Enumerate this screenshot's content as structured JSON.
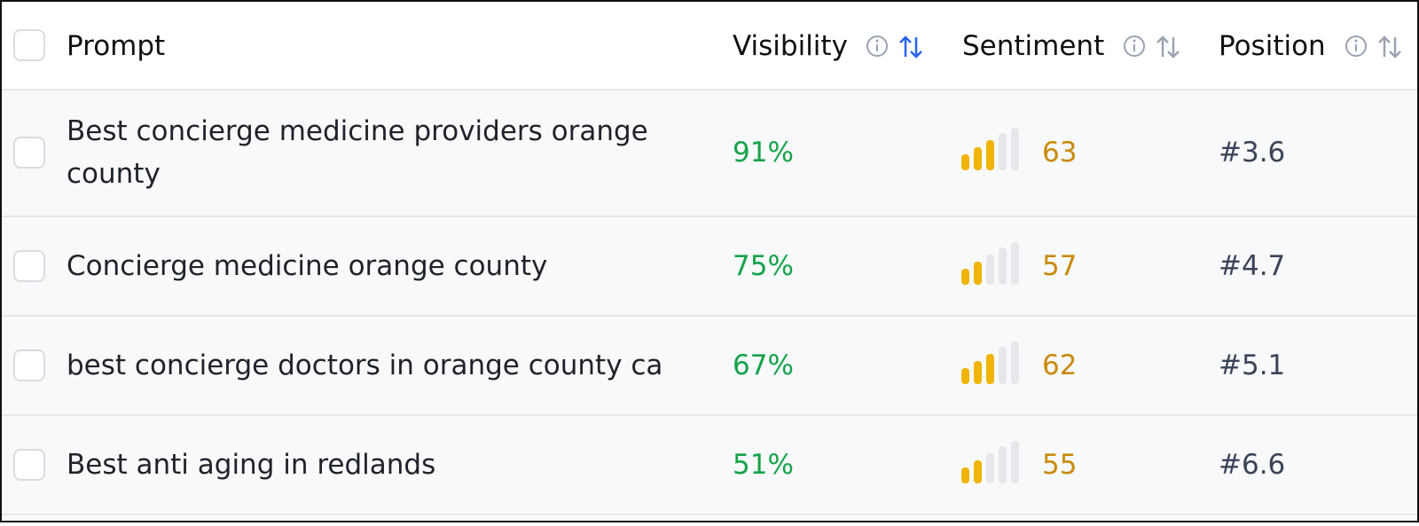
{
  "table": {
    "headers": [
      "Prompt",
      "Visibility",
      "Sentiment",
      "Position"
    ],
    "rows": [
      [
        "Best concierge medicine providers orange county",
        "91%",
        "63",
        "#3.6"
      ],
      [
        "Concierge medicine orange county",
        "75%",
        "57",
        "#4.7"
      ],
      [
        "best concierge doctors in orange county ca",
        "67%",
        "62",
        "#5.1"
      ],
      [
        "Best anti aging in redlands",
        "51%",
        "55",
        "#6.6"
      ]
    ]
  }
}
